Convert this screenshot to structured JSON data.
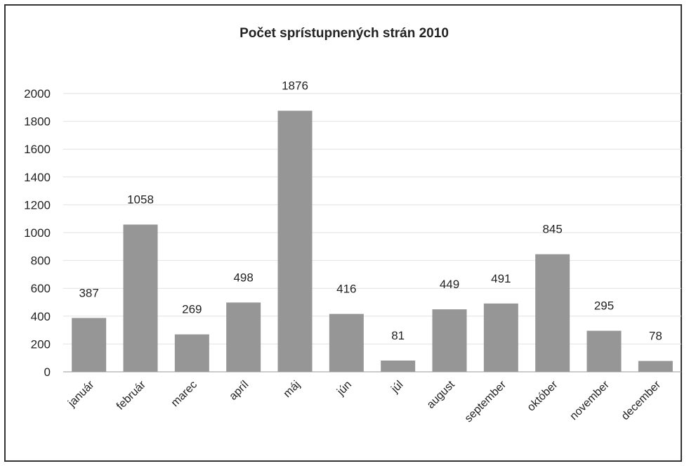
{
  "chart_data": {
    "type": "bar",
    "title": "Počet sprístupnených strán 2010",
    "xlabel": "",
    "ylabel": "",
    "ylim": [
      0,
      2000
    ],
    "yticks": [
      "0",
      "200",
      "400",
      "600",
      "800",
      "1000",
      "1200",
      "1400",
      "1600",
      "1800",
      "2000"
    ],
    "grid": true,
    "legend": "none",
    "bar_color": "#969696",
    "categories": [
      "január",
      "február",
      "marec",
      "apríl",
      "máj",
      "jún",
      "júl",
      "august",
      "september",
      "október",
      "november",
      "december"
    ],
    "values": [
      387,
      1058,
      269,
      498,
      1876,
      416,
      81,
      449,
      491,
      845,
      295,
      78
    ]
  }
}
